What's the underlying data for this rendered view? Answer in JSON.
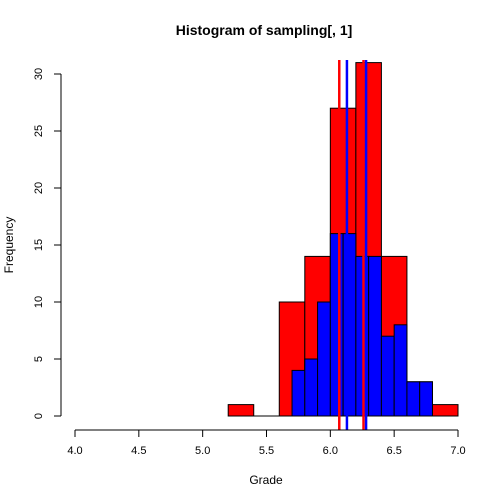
{
  "chart_data": {
    "type": "bar",
    "title": "Histogram of sampling[, 1]",
    "xlabel": "Grade",
    "ylabel": "Frequency",
    "xlim": [
      4.0,
      7.0
    ],
    "ylim": [
      0,
      31
    ],
    "x_ticks": [
      "4.0",
      "4.5",
      "5.0",
      "5.5",
      "6.0",
      "6.5",
      "7.0"
    ],
    "y_ticks": [
      "0",
      "5",
      "10",
      "15",
      "20",
      "25",
      "30"
    ],
    "grid": false,
    "series": [
      {
        "bin_width": 0.2,
        "color": "#ff0000",
        "bins": [
          {
            "start": 5.2,
            "count": 1
          },
          {
            "start": 5.4,
            "count": 0
          },
          {
            "start": 5.6,
            "count": 10
          },
          {
            "start": 5.8,
            "count": 14
          },
          {
            "start": 6.0,
            "count": 27
          },
          {
            "start": 6.2,
            "count": 31
          },
          {
            "start": 6.4,
            "count": 14
          },
          {
            "start": 6.6,
            "count": 3
          },
          {
            "start": 6.8,
            "count": 1
          }
        ]
      },
      {
        "bin_width": 0.1,
        "color": "#0000ff",
        "bins": [
          {
            "start": 5.7,
            "count": 4
          },
          {
            "start": 5.8,
            "count": 5
          },
          {
            "start": 5.9,
            "count": 10
          },
          {
            "start": 6.0,
            "count": 16
          },
          {
            "start": 6.1,
            "count": 16
          },
          {
            "start": 6.2,
            "count": 14
          },
          {
            "start": 6.3,
            "count": 14
          },
          {
            "start": 6.4,
            "count": 7
          },
          {
            "start": 6.5,
            "count": 8
          },
          {
            "start": 6.6,
            "count": 3
          },
          {
            "start": 6.7,
            "count": 3
          }
        ]
      }
    ],
    "vlines": [
      {
        "x": 6.07,
        "color": "#ff0000"
      },
      {
        "x": 6.13,
        "color": "#0000ff"
      },
      {
        "x": 6.26,
        "color": "#ff0000"
      },
      {
        "x": 6.28,
        "color": "#0000ff"
      }
    ]
  }
}
